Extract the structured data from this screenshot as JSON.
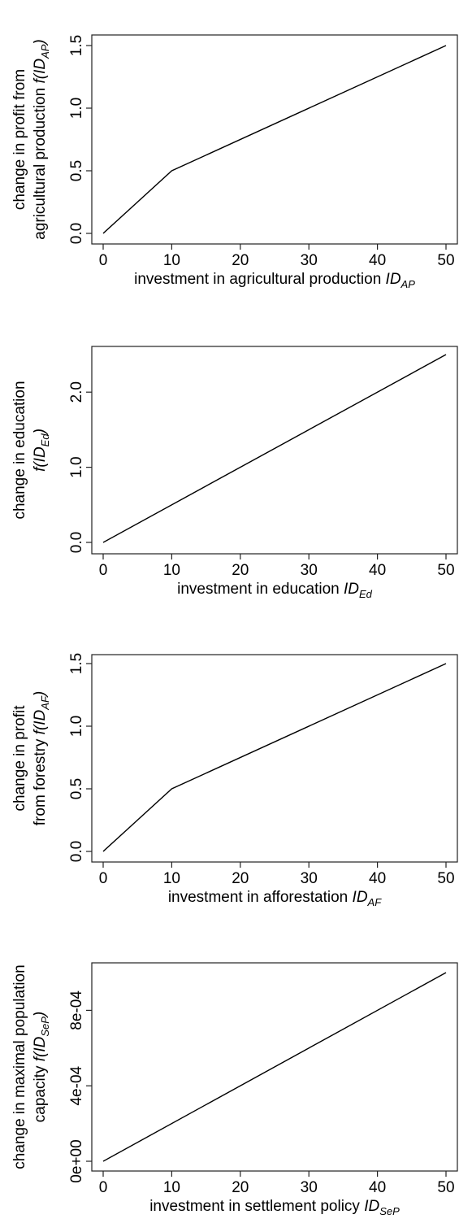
{
  "chart_data": [
    {
      "type": "line",
      "ylabel_line1": "change in profit from",
      "ylabel_line2_prefix": "agricultural production ",
      "ylabel_func": "f(",
      "ylabel_id": "ID",
      "ylabel_sub": "AP",
      "ylabel_close": ")",
      "xlabel_prefix": "investment in agricultural production ",
      "xlabel_id": "ID",
      "xlabel_sub": "AP",
      "xlim": [
        0,
        50
      ],
      "ylim": [
        0,
        1.5
      ],
      "x_ticks": [
        0,
        10,
        20,
        30,
        40,
        50
      ],
      "x_tick_labels": [
        "0",
        "10",
        "20",
        "30",
        "40",
        "50"
      ],
      "y_ticks": [
        0,
        0.5,
        1.0,
        1.5
      ],
      "y_tick_labels": [
        "0.0",
        "0.5",
        "1.0",
        "1.5"
      ],
      "x": [
        0,
        10,
        50
      ],
      "y": [
        0,
        0.5,
        1.5
      ]
    },
    {
      "type": "line",
      "ylabel_line1": "change in education",
      "ylabel_line2_prefix": "",
      "ylabel_func": "f(",
      "ylabel_id": "ID",
      "ylabel_sub": "Ed",
      "ylabel_close": ")",
      "xlabel_prefix": "investment in education ",
      "xlabel_id": "ID",
      "xlabel_sub": "Ed",
      "xlim": [
        0,
        50
      ],
      "ylim": [
        0,
        2.5
      ],
      "x_ticks": [
        0,
        10,
        20,
        30,
        40,
        50
      ],
      "x_tick_labels": [
        "0",
        "10",
        "20",
        "30",
        "40",
        "50"
      ],
      "y_ticks": [
        0,
        1.0,
        2.0
      ],
      "y_tick_labels": [
        "0.0",
        "1.0",
        "2.0"
      ],
      "x": [
        0,
        50
      ],
      "y": [
        0,
        2.5
      ]
    },
    {
      "type": "line",
      "ylabel_line1": "change in profit",
      "ylabel_line2_prefix": "from forestry ",
      "ylabel_func": "f(",
      "ylabel_id": "ID",
      "ylabel_sub": "AF",
      "ylabel_close": ")",
      "xlabel_prefix": "investment in afforestation ",
      "xlabel_id": "ID",
      "xlabel_sub": "AF",
      "xlim": [
        0,
        50
      ],
      "ylim": [
        0,
        1.5
      ],
      "x_ticks": [
        0,
        10,
        20,
        30,
        40,
        50
      ],
      "x_tick_labels": [
        "0",
        "10",
        "20",
        "30",
        "40",
        "50"
      ],
      "y_ticks": [
        0,
        0.5,
        1.0,
        1.5
      ],
      "y_tick_labels": [
        "0.0",
        "0.5",
        "1.0",
        "1.5"
      ],
      "x": [
        0,
        10,
        50
      ],
      "y": [
        0,
        0.5,
        1.5
      ]
    },
    {
      "type": "line",
      "ylabel_line1": "change in maximal population",
      "ylabel_line2_prefix": "capacity ",
      "ylabel_func": "f(",
      "ylabel_id": "ID",
      "ylabel_sub": "SeP",
      "ylabel_close": ")",
      "xlabel_prefix": "investment in settlement policy ",
      "xlabel_id": "ID",
      "xlabel_sub": "SeP",
      "xlim": [
        0,
        50
      ],
      "ylim": [
        0,
        0.001
      ],
      "x_ticks": [
        0,
        10,
        20,
        30,
        40,
        50
      ],
      "x_tick_labels": [
        "0",
        "10",
        "20",
        "30",
        "40",
        "50"
      ],
      "y_ticks": [
        0,
        0.0004,
        0.0008
      ],
      "y_tick_labels": [
        "0e+00",
        "4e-04",
        "8e-04"
      ],
      "x": [
        0,
        50
      ],
      "y": [
        0,
        0.001
      ]
    }
  ]
}
